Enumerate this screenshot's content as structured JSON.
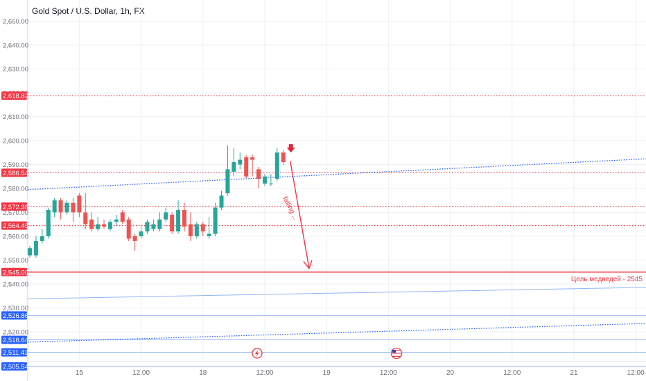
{
  "chart_data": {
    "type": "candlestick",
    "title": "Gold Spot / U.S. Dollar, 1h, FX",
    "ylim": [
      2500,
      2655
    ],
    "y_ticks": [
      "2,650.00",
      "2,640.00",
      "2,630.00",
      "2,620.00",
      "2,610.00",
      "2,600.00",
      "2,590.00",
      "2,580.00",
      "2,570.00",
      "2,560.00",
      "2,550.00",
      "2,540.00",
      "2,530.00",
      "2,520.00"
    ],
    "y_tick_values": [
      2650,
      2640,
      2630,
      2620,
      2610,
      2600,
      2590,
      2580,
      2570,
      2560,
      2550,
      2540,
      2530,
      2520
    ],
    "x_ticks": [
      {
        "label": "15",
        "bar": 8
      },
      {
        "label": "12:00",
        "bar": 18
      },
      {
        "label": "18",
        "bar": 28
      },
      {
        "label": "12:00",
        "bar": 38
      },
      {
        "label": "19",
        "bar": 48
      },
      {
        "label": "12:00",
        "bar": 58
      },
      {
        "label": "20",
        "bar": 68
      },
      {
        "label": "12:00",
        "bar": 78
      },
      {
        "label": "21",
        "bar": 88
      },
      {
        "label": "12:00",
        "bar": 98
      }
    ],
    "candles": [
      {
        "o": 2552,
        "h": 2556,
        "c": 2555,
        "l": 2551
      },
      {
        "o": 2552,
        "h": 2560,
        "c": 2558,
        "l": 2551
      },
      {
        "o": 2558,
        "h": 2563,
        "c": 2560,
        "l": 2557
      },
      {
        "o": 2560,
        "h": 2572,
        "c": 2571,
        "l": 2559
      },
      {
        "o": 2570,
        "h": 2576,
        "c": 2575,
        "l": 2568
      },
      {
        "o": 2575,
        "h": 2576,
        "c": 2570,
        "l": 2567
      },
      {
        "o": 2570,
        "h": 2575,
        "c": 2574,
        "l": 2569
      },
      {
        "o": 2574,
        "h": 2576,
        "c": 2570,
        "l": 2566
      },
      {
        "o": 2577,
        "h": 2578,
        "c": 2570,
        "l": 2568
      },
      {
        "o": 2570,
        "h": 2578,
        "c": 2565,
        "l": 2563
      },
      {
        "o": 2567,
        "h": 2570,
        "c": 2563,
        "l": 2562
      },
      {
        "o": 2563,
        "h": 2568,
        "c": 2565,
        "l": 2562
      },
      {
        "o": 2565,
        "h": 2567,
        "c": 2564,
        "l": 2563
      },
      {
        "o": 2563,
        "h": 2567,
        "c": 2566,
        "l": 2562
      },
      {
        "o": 2566,
        "h": 2569,
        "c": 2567,
        "l": 2564
      },
      {
        "o": 2570,
        "h": 2571,
        "c": 2566,
        "l": 2565
      },
      {
        "o": 2567,
        "h": 2568,
        "c": 2559,
        "l": 2558
      },
      {
        "o": 2560,
        "h": 2561,
        "c": 2558,
        "l": 2554
      },
      {
        "o": 2560,
        "h": 2564,
        "c": 2562,
        "l": 2559
      },
      {
        "o": 2562,
        "h": 2567,
        "c": 2566,
        "l": 2561
      },
      {
        "o": 2563,
        "h": 2567,
        "c": 2565,
        "l": 2562
      },
      {
        "o": 2563,
        "h": 2570,
        "c": 2567,
        "l": 2562
      },
      {
        "o": 2567,
        "h": 2572,
        "c": 2570,
        "l": 2566
      },
      {
        "o": 2569,
        "h": 2570,
        "c": 2562,
        "l": 2561
      },
      {
        "o": 2562,
        "h": 2575,
        "c": 2571,
        "l": 2561
      },
      {
        "o": 2571,
        "h": 2574,
        "c": 2564,
        "l": 2562
      },
      {
        "o": 2565,
        "h": 2570,
        "c": 2560,
        "l": 2558
      },
      {
        "o": 2560,
        "h": 2566,
        "c": 2565,
        "l": 2559
      },
      {
        "o": 2565,
        "h": 2566,
        "c": 2562,
        "l": 2560
      },
      {
        "o": 2560,
        "h": 2568,
        "c": 2561,
        "l": 2559
      },
      {
        "o": 2561,
        "h": 2574,
        "c": 2572,
        "l": 2560
      },
      {
        "o": 2572,
        "h": 2579,
        "c": 2577,
        "l": 2571
      },
      {
        "o": 2578,
        "h": 2598,
        "c": 2588,
        "l": 2577
      },
      {
        "o": 2587,
        "h": 2597,
        "c": 2591,
        "l": 2585
      },
      {
        "o": 2590,
        "h": 2595,
        "c": 2592,
        "l": 2588
      },
      {
        "o": 2593,
        "h": 2594,
        "c": 2585,
        "l": 2584
      },
      {
        "o": 2593,
        "h": 2594,
        "c": 2592,
        "l": 2585
      },
      {
        "o": 2588,
        "h": 2589,
        "c": 2584,
        "l": 2580
      },
      {
        "o": 2582,
        "h": 2586,
        "c": 2585,
        "l": 2581
      },
      {
        "o": 2582,
        "h": 2586,
        "c": 2582,
        "l": 2581
      },
      {
        "o": 2584,
        "h": 2597,
        "c": 2595,
        "l": 2583
      },
      {
        "o": 2595,
        "h": 2596,
        "c": 2591,
        "l": 2590
      }
    ],
    "price_labels": [
      {
        "text": "2,618.82",
        "value": 2618.82,
        "color": "#f23645"
      },
      {
        "text": "2,586.54",
        "value": 2586.54,
        "color": "#f23645"
      },
      {
        "text": "2,572.38",
        "value": 2572.38,
        "color": "#f23645"
      },
      {
        "text": "2,564.45",
        "value": 2564.45,
        "color": "#f23645"
      },
      {
        "text": "2,545.00",
        "value": 2545.0,
        "color": "#f23645"
      },
      {
        "text": "2,526.86",
        "value": 2526.86,
        "color": "#2962ff"
      },
      {
        "text": "2,516.64",
        "value": 2516.64,
        "color": "#2962ff"
      },
      {
        "text": "2,511.41",
        "value": 2511.41,
        "color": "#2962ff"
      },
      {
        "text": "2,505.54",
        "value": 2505.54,
        "color": "#2962ff"
      }
    ],
    "annotations": {
      "target_label": "Цель медведей - 2545",
      "arrow_label": "falling ..."
    },
    "colors": {
      "up": "#26a69a",
      "down": "#ef5350",
      "level": "#f23645",
      "trend": "#2962ff",
      "grid": "#edf0f4"
    },
    "grid": true
  }
}
